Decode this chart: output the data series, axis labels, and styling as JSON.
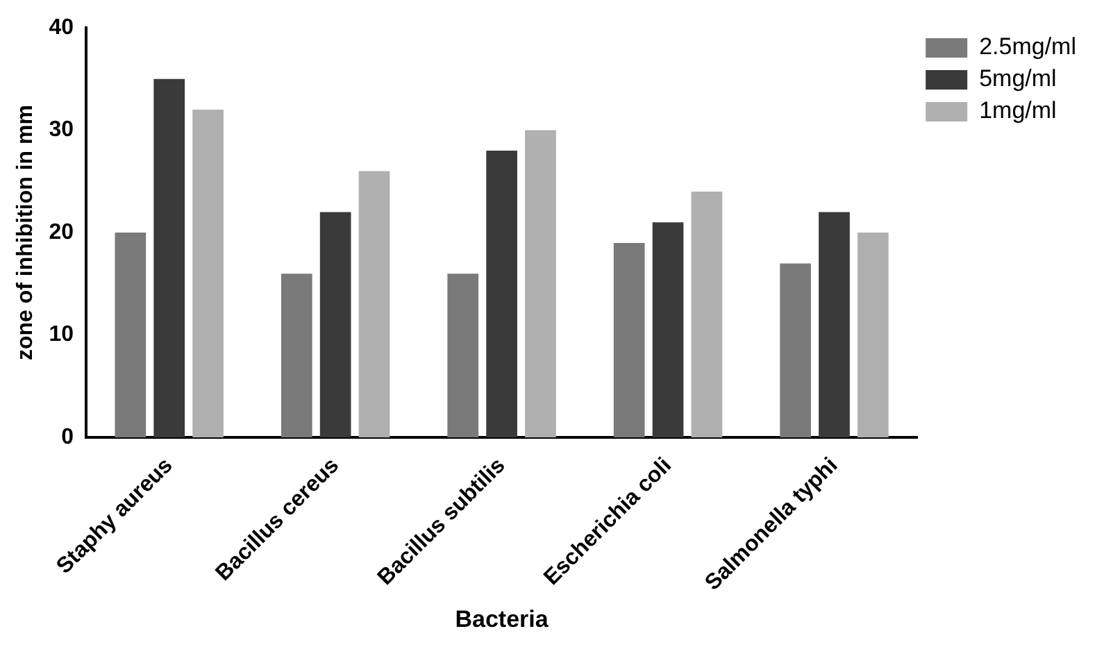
{
  "chart_data": {
    "type": "bar",
    "xlabel": "Bacteria",
    "ylabel": "zone of inhibition in mm",
    "categories": [
      "Staphy aureus",
      "Bacillus cereus",
      "Bacillus subtilis",
      "Escherichia coli",
      "Salmonella typhi"
    ],
    "series": [
      {
        "name": "2.5mg/ml",
        "color": "#7a7a7a",
        "values": [
          20,
          16,
          16,
          19,
          17
        ]
      },
      {
        "name": "5mg/ml",
        "color": "#3a3a3a",
        "values": [
          35,
          22,
          28,
          21,
          22
        ]
      },
      {
        "name": "1mg/ml",
        "color": "#b0b0b0",
        "values": [
          32,
          26,
          30,
          24,
          20
        ]
      }
    ],
    "ylim": [
      0,
      40
    ],
    "yticks": [
      0,
      10,
      20,
      30,
      40
    ],
    "grid": false,
    "legend": "top right"
  }
}
